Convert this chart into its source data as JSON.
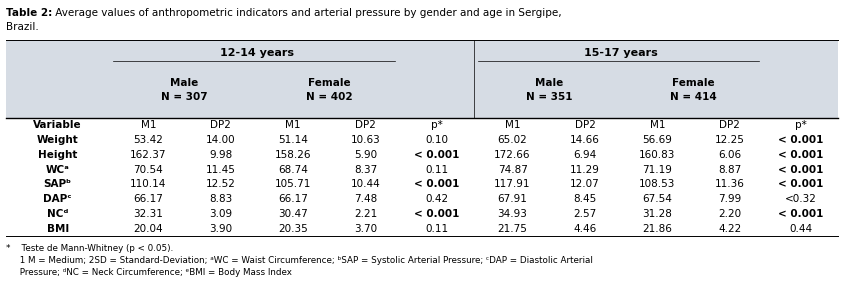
{
  "title_bold": "Table 2:",
  "title_rest": " Average values of anthropometric indicators and arterial pressure by gender and age in Sergipe,",
  "title_line2": "Brazil.",
  "header_bg": "#d6dce4",
  "age_groups": [
    "12-14 years",
    "15-17 years"
  ],
  "col_headers": [
    "Variable",
    "M1",
    "DP2",
    "M1",
    "DP2",
    "p*",
    "M1",
    "DP2",
    "M1",
    "DP2",
    "p*"
  ],
  "rows": [
    [
      "Weight",
      "53.42",
      "14.00",
      "51.14",
      "10.63",
      "0.10",
      "65.02",
      "14.66",
      "56.69",
      "12.25",
      "< 0.001"
    ],
    [
      "Height",
      "162.37",
      "9.98",
      "158.26",
      "5.90",
      "< 0.001",
      "172.66",
      "6.94",
      "160.83",
      "6.06",
      "< 0.001"
    ],
    [
      "WCᵃ",
      "70.54",
      "11.45",
      "68.74",
      "8.37",
      "0.11",
      "74.87",
      "11.29",
      "71.19",
      "8.87",
      "< 0.001"
    ],
    [
      "SAPᵇ",
      "110.14",
      "12.52",
      "105.71",
      "10.44",
      "< 0.001",
      "117.91",
      "12.07",
      "108.53",
      "11.36",
      "< 0.001"
    ],
    [
      "DAPᶜ",
      "66.17",
      "8.83",
      "66.17",
      "7.48",
      "0.42",
      "67.91",
      "8.45",
      "67.54",
      "7.99",
      "<0.32"
    ],
    [
      "NCᵈ",
      "32.31",
      "3.09",
      "30.47",
      "2.21",
      "< 0.001",
      "34.93",
      "2.57",
      "31.28",
      "2.20",
      "< 0.001"
    ],
    [
      "BMI",
      "20.04",
      "3.90",
      "20.35",
      "3.70",
      "0.11",
      "21.75",
      "4.46",
      "21.86",
      "4.22",
      "0.44"
    ]
  ],
  "bold_p": [
    "< 0.001"
  ],
  "footnote1": "*    Teste de Mann-Whitney (p < 0.05).",
  "footnote2": "     1 M = Medium; 2SD = Standard-Deviation; ᵃWC = Waist Circumference; ᵇSAP = Systolic Arterial Pressure; ᶜDAP = Diastolic Arterial",
  "footnote3": "     Pressure; ᵈNC = Neck Circumference; ᵉBMI = Body Mass Index"
}
